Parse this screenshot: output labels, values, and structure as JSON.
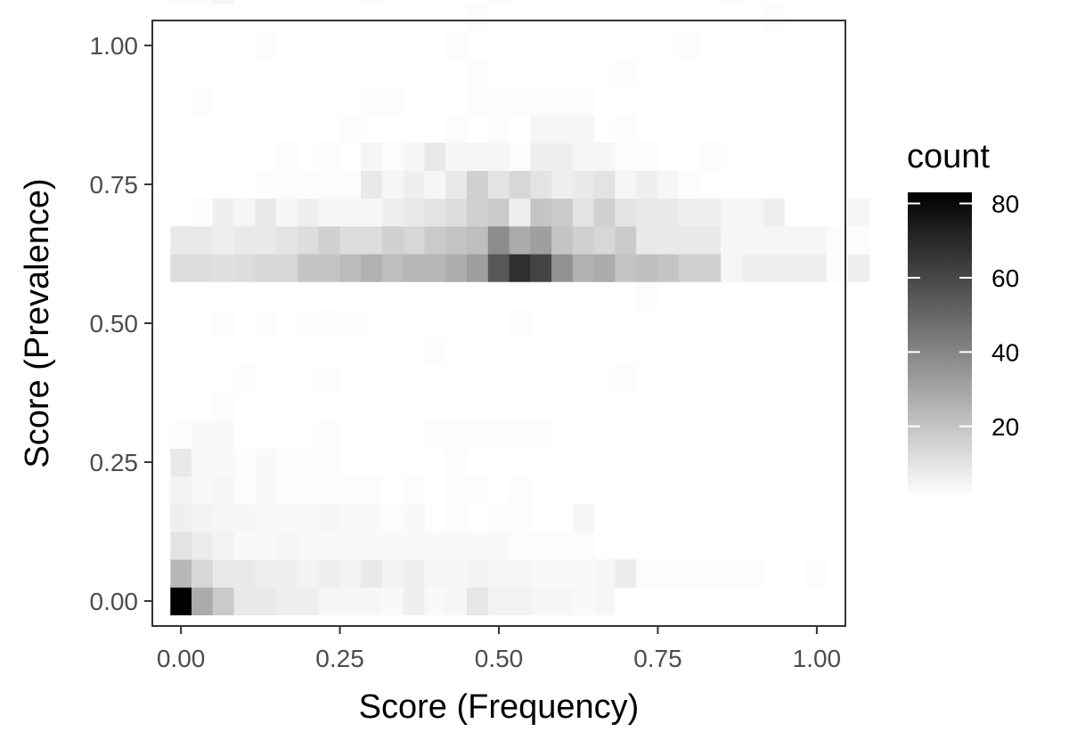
{
  "chart_data": {
    "type": "heatmap",
    "xlabel": "Score (Frequency)",
    "ylabel": "Score (Prevalence)",
    "xlim": [
      -0.045,
      1.045
    ],
    "ylim": [
      -0.045,
      1.045
    ],
    "x_ticks": [
      0,
      0.25,
      0.5,
      0.75,
      1
    ],
    "x_tick_labels": [
      "0.00",
      "0.25",
      "0.50",
      "0.75",
      "1.00"
    ],
    "y_ticks": [
      0,
      0.25,
      0.5,
      0.75,
      1
    ],
    "y_tick_labels": [
      "0.00",
      "0.25",
      "0.50",
      "0.75",
      "1.00"
    ],
    "bin_width": 0.0333,
    "bin_height": 0.05,
    "legend": {
      "title": "count",
      "range": [
        1,
        83
      ],
      "ticks": [
        20,
        40,
        60,
        80
      ],
      "tick_labels": [
        "20",
        "40",
        "60",
        "80"
      ],
      "color_low": "#ffffff",
      "color_high": "#000000",
      "placement": "right"
    },
    "bins": [
      [
        0,
        0,
        83
      ],
      [
        1,
        0,
        28
      ],
      [
        2,
        0,
        18
      ],
      [
        3,
        0,
        8
      ],
      [
        4,
        0,
        8
      ],
      [
        5,
        0,
        6
      ],
      [
        6,
        0,
        6
      ],
      [
        7,
        0,
        4
      ],
      [
        8,
        0,
        4
      ],
      [
        9,
        0,
        4
      ],
      [
        10,
        0,
        3
      ],
      [
        11,
        0,
        6
      ],
      [
        12,
        0,
        3
      ],
      [
        13,
        0,
        4
      ],
      [
        14,
        0,
        9
      ],
      [
        15,
        0,
        5
      ],
      [
        16,
        0,
        5
      ],
      [
        17,
        0,
        4
      ],
      [
        18,
        0,
        4
      ],
      [
        19,
        0,
        3
      ],
      [
        20,
        0,
        4
      ],
      [
        21,
        0,
        1
      ],
      [
        22,
        0,
        1
      ],
      [
        23,
        0,
        1
      ],
      [
        24,
        0,
        1
      ],
      [
        0,
        1,
        24
      ],
      [
        1,
        1,
        14
      ],
      [
        2,
        1,
        8
      ],
      [
        3,
        1,
        8
      ],
      [
        4,
        1,
        6
      ],
      [
        5,
        1,
        6
      ],
      [
        6,
        1,
        5
      ],
      [
        7,
        1,
        6
      ],
      [
        8,
        1,
        5
      ],
      [
        9,
        1,
        8
      ],
      [
        10,
        1,
        5
      ],
      [
        11,
        1,
        6
      ],
      [
        12,
        1,
        4
      ],
      [
        13,
        1,
        4
      ],
      [
        14,
        1,
        5
      ],
      [
        15,
        1,
        4
      ],
      [
        16,
        1,
        4
      ],
      [
        17,
        1,
        3
      ],
      [
        18,
        1,
        3
      ],
      [
        19,
        1,
        3
      ],
      [
        20,
        1,
        4
      ],
      [
        21,
        1,
        7
      ],
      [
        22,
        1,
        2
      ],
      [
        23,
        1,
        2
      ],
      [
        24,
        1,
        2
      ],
      [
        25,
        1,
        2
      ],
      [
        26,
        1,
        2
      ],
      [
        27,
        1,
        2
      ],
      [
        28,
        1,
        1
      ],
      [
        29,
        1,
        1
      ],
      [
        30,
        1,
        2
      ],
      [
        0,
        2,
        10
      ],
      [
        1,
        2,
        7
      ],
      [
        2,
        2,
        5
      ],
      [
        3,
        2,
        3
      ],
      [
        4,
        2,
        3
      ],
      [
        5,
        2,
        4
      ],
      [
        6,
        2,
        3
      ],
      [
        7,
        2,
        3
      ],
      [
        8,
        2,
        3
      ],
      [
        9,
        2,
        3
      ],
      [
        10,
        2,
        3
      ],
      [
        11,
        2,
        3
      ],
      [
        12,
        2,
        3
      ],
      [
        13,
        2,
        3
      ],
      [
        14,
        2,
        3
      ],
      [
        15,
        2,
        3
      ],
      [
        16,
        2,
        2
      ],
      [
        17,
        2,
        2
      ],
      [
        18,
        2,
        2
      ],
      [
        19,
        2,
        2
      ],
      [
        0,
        3,
        6
      ],
      [
        1,
        3,
        5
      ],
      [
        2,
        3,
        4
      ],
      [
        3,
        3,
        4
      ],
      [
        4,
        3,
        3
      ],
      [
        5,
        3,
        3
      ],
      [
        6,
        3,
        3
      ],
      [
        7,
        3,
        4
      ],
      [
        8,
        3,
        3
      ],
      [
        9,
        3,
        3
      ],
      [
        10,
        3,
        2
      ],
      [
        11,
        3,
        3
      ],
      [
        13,
        3,
        2
      ],
      [
        15,
        3,
        2
      ],
      [
        16,
        3,
        2
      ],
      [
        19,
        3,
        4
      ],
      [
        0,
        4,
        5
      ],
      [
        1,
        4,
        3
      ],
      [
        2,
        4,
        4
      ],
      [
        3,
        4,
        2
      ],
      [
        4,
        4,
        3
      ],
      [
        5,
        4,
        2
      ],
      [
        6,
        4,
        2
      ],
      [
        7,
        4,
        2
      ],
      [
        8,
        4,
        2
      ],
      [
        9,
        4,
        2
      ],
      [
        11,
        4,
        2
      ],
      [
        13,
        4,
        2
      ],
      [
        14,
        4,
        2
      ],
      [
        16,
        4,
        2
      ],
      [
        0,
        5,
        8
      ],
      [
        1,
        5,
        3
      ],
      [
        2,
        5,
        3
      ],
      [
        3,
        5,
        2
      ],
      [
        4,
        5,
        3
      ],
      [
        5,
        5,
        2
      ],
      [
        6,
        5,
        2
      ],
      [
        7,
        5,
        2
      ],
      [
        9,
        5,
        1
      ],
      [
        11,
        5,
        1
      ],
      [
        13,
        5,
        2
      ],
      [
        14,
        5,
        1
      ],
      [
        16,
        5,
        1
      ],
      [
        18,
        5,
        1
      ],
      [
        0,
        6,
        2
      ],
      [
        1,
        6,
        3
      ],
      [
        2,
        6,
        3
      ],
      [
        3,
        6,
        1
      ],
      [
        7,
        6,
        2
      ],
      [
        9,
        6,
        1
      ],
      [
        12,
        6,
        2
      ],
      [
        13,
        6,
        2
      ],
      [
        14,
        6,
        2
      ],
      [
        15,
        6,
        2
      ],
      [
        16,
        6,
        2
      ],
      [
        17,
        6,
        2
      ],
      [
        2,
        7,
        2
      ],
      [
        0,
        7,
        1
      ],
      [
        3,
        7,
        1
      ],
      [
        4,
        7,
        1
      ],
      [
        6,
        7,
        1
      ],
      [
        16,
        7,
        1
      ],
      [
        3,
        8,
        2
      ],
      [
        5,
        8,
        1
      ],
      [
        7,
        8,
        2
      ],
      [
        15,
        8,
        1
      ],
      [
        21,
        8,
        2
      ],
      [
        7,
        9,
        1
      ],
      [
        12,
        9,
        2
      ],
      [
        19,
        9,
        1
      ],
      [
        2,
        10,
        2
      ],
      [
        3,
        10,
        1
      ],
      [
        4,
        10,
        2
      ],
      [
        5,
        10,
        1
      ],
      [
        6,
        10,
        2
      ],
      [
        7,
        10,
        2
      ],
      [
        8,
        10,
        2
      ],
      [
        11,
        10,
        1
      ],
      [
        13,
        10,
        1
      ],
      [
        16,
        10,
        2
      ],
      [
        7,
        11,
        1
      ],
      [
        12,
        11,
        1
      ],
      [
        16,
        11,
        1
      ],
      [
        22,
        11,
        2
      ],
      [
        0,
        12,
        12
      ],
      [
        1,
        12,
        12
      ],
      [
        2,
        12,
        11
      ],
      [
        3,
        12,
        12
      ],
      [
        4,
        12,
        14
      ],
      [
        5,
        12,
        14
      ],
      [
        6,
        12,
        20
      ],
      [
        7,
        12,
        20
      ],
      [
        8,
        12,
        23
      ],
      [
        9,
        12,
        26
      ],
      [
        10,
        12,
        22
      ],
      [
        11,
        12,
        24
      ],
      [
        12,
        12,
        24
      ],
      [
        13,
        12,
        27
      ],
      [
        14,
        12,
        32
      ],
      [
        15,
        12,
        55
      ],
      [
        16,
        12,
        68
      ],
      [
        17,
        12,
        61
      ],
      [
        18,
        12,
        36
      ],
      [
        19,
        12,
        26
      ],
      [
        20,
        12,
        28
      ],
      [
        21,
        12,
        20
      ],
      [
        22,
        12,
        22
      ],
      [
        23,
        12,
        20
      ],
      [
        24,
        12,
        16
      ],
      [
        25,
        12,
        16
      ],
      [
        26,
        12,
        4
      ],
      [
        27,
        12,
        6
      ],
      [
        28,
        12,
        6
      ],
      [
        29,
        12,
        6
      ],
      [
        30,
        12,
        6
      ],
      [
        31,
        12,
        2
      ],
      [
        32,
        12,
        6
      ],
      [
        0,
        13,
        8
      ],
      [
        1,
        13,
        8
      ],
      [
        2,
        13,
        6
      ],
      [
        3,
        13,
        8
      ],
      [
        4,
        13,
        8
      ],
      [
        5,
        13,
        10
      ],
      [
        6,
        13,
        12
      ],
      [
        7,
        13,
        16
      ],
      [
        8,
        13,
        12
      ],
      [
        9,
        13,
        12
      ],
      [
        10,
        13,
        16
      ],
      [
        11,
        13,
        14
      ],
      [
        12,
        13,
        18
      ],
      [
        13,
        13,
        20
      ],
      [
        14,
        13,
        22
      ],
      [
        15,
        13,
        38
      ],
      [
        16,
        13,
        28
      ],
      [
        17,
        13,
        32
      ],
      [
        18,
        13,
        20
      ],
      [
        19,
        13,
        16
      ],
      [
        20,
        13,
        14
      ],
      [
        21,
        13,
        18
      ],
      [
        22,
        13,
        8
      ],
      [
        23,
        13,
        8
      ],
      [
        24,
        13,
        8
      ],
      [
        25,
        13,
        8
      ],
      [
        26,
        13,
        4
      ],
      [
        27,
        13,
        4
      ],
      [
        28,
        13,
        4
      ],
      [
        29,
        13,
        4
      ],
      [
        30,
        13,
        4
      ],
      [
        31,
        13,
        2
      ],
      [
        32,
        13,
        2
      ],
      [
        1,
        14,
        2
      ],
      [
        2,
        14,
        6
      ],
      [
        3,
        14,
        4
      ],
      [
        4,
        14,
        8
      ],
      [
        5,
        14,
        4
      ],
      [
        6,
        14,
        6
      ],
      [
        7,
        14,
        4
      ],
      [
        8,
        14,
        4
      ],
      [
        9,
        14,
        4
      ],
      [
        10,
        14,
        6
      ],
      [
        11,
        14,
        8
      ],
      [
        12,
        14,
        10
      ],
      [
        13,
        14,
        12
      ],
      [
        14,
        14,
        16
      ],
      [
        15,
        14,
        18
      ],
      [
        16,
        14,
        6
      ],
      [
        17,
        14,
        20
      ],
      [
        18,
        14,
        18
      ],
      [
        19,
        14,
        10
      ],
      [
        20,
        14,
        16
      ],
      [
        21,
        14,
        10
      ],
      [
        22,
        14,
        8
      ],
      [
        23,
        14,
        8
      ],
      [
        24,
        14,
        6
      ],
      [
        25,
        14,
        6
      ],
      [
        26,
        14,
        4
      ],
      [
        27,
        14,
        4
      ],
      [
        28,
        14,
        6
      ],
      [
        32,
        14,
        4
      ],
      [
        4,
        15,
        2
      ],
      [
        5,
        15,
        2
      ],
      [
        6,
        15,
        2
      ],
      [
        7,
        15,
        2
      ],
      [
        8,
        15,
        2
      ],
      [
        9,
        15,
        8
      ],
      [
        10,
        15,
        4
      ],
      [
        11,
        15,
        6
      ],
      [
        12,
        15,
        4
      ],
      [
        13,
        15,
        8
      ],
      [
        14,
        15,
        16
      ],
      [
        15,
        15,
        10
      ],
      [
        16,
        15,
        14
      ],
      [
        17,
        15,
        10
      ],
      [
        18,
        15,
        6
      ],
      [
        19,
        15,
        8
      ],
      [
        20,
        15,
        10
      ],
      [
        21,
        15,
        4
      ],
      [
        22,
        15,
        6
      ],
      [
        23,
        15,
        4
      ],
      [
        24,
        15,
        2
      ],
      [
        5,
        16,
        2
      ],
      [
        7,
        16,
        2
      ],
      [
        9,
        16,
        4
      ],
      [
        10,
        16,
        2
      ],
      [
        11,
        16,
        4
      ],
      [
        12,
        16,
        8
      ],
      [
        13,
        16,
        4
      ],
      [
        14,
        16,
        4
      ],
      [
        15,
        16,
        4
      ],
      [
        16,
        16,
        2
      ],
      [
        17,
        16,
        6
      ],
      [
        18,
        16,
        6
      ],
      [
        19,
        16,
        4
      ],
      [
        20,
        16,
        4
      ],
      [
        21,
        16,
        2
      ],
      [
        22,
        16,
        2
      ],
      [
        25,
        16,
        2
      ],
      [
        2,
        17,
        1
      ],
      [
        8,
        17,
        2
      ],
      [
        11,
        17,
        1
      ],
      [
        13,
        17,
        2
      ],
      [
        15,
        17,
        2
      ],
      [
        16,
        17,
        1
      ],
      [
        17,
        17,
        4
      ],
      [
        18,
        17,
        4
      ],
      [
        19,
        17,
        4
      ],
      [
        21,
        17,
        2
      ],
      [
        1,
        18,
        2
      ],
      [
        3,
        18,
        1
      ],
      [
        5,
        18,
        1
      ],
      [
        9,
        18,
        2
      ],
      [
        10,
        18,
        2
      ],
      [
        12,
        18,
        1
      ],
      [
        14,
        18,
        2
      ],
      [
        15,
        18,
        2
      ],
      [
        16,
        18,
        2
      ],
      [
        17,
        18,
        2
      ],
      [
        18,
        18,
        2
      ],
      [
        19,
        18,
        2
      ],
      [
        3,
        19,
        1
      ],
      [
        5,
        19,
        1
      ],
      [
        6,
        19,
        1
      ],
      [
        7,
        19,
        1
      ],
      [
        11,
        19,
        1
      ],
      [
        14,
        19,
        2
      ],
      [
        17,
        19,
        1
      ],
      [
        21,
        19,
        2
      ],
      [
        4,
        20,
        2
      ],
      [
        13,
        20,
        2
      ],
      [
        24,
        20,
        2
      ],
      [
        12,
        21,
        1
      ],
      [
        14,
        21,
        2
      ],
      [
        19,
        21,
        1
      ],
      [
        21,
        21,
        1
      ],
      [
        28,
        21,
        2
      ],
      [
        0,
        22,
        2
      ],
      [
        1,
        22,
        2
      ],
      [
        2,
        22,
        4
      ],
      [
        9,
        22,
        2
      ],
      [
        12,
        22,
        1
      ],
      [
        15,
        22,
        2
      ],
      [
        26,
        22,
        2
      ],
      [
        17,
        23,
        3
      ],
      [
        0,
        24,
        6
      ],
      [
        1,
        24,
        4
      ],
      [
        2,
        24,
        3
      ],
      [
        6,
        24,
        2
      ],
      [
        9,
        24,
        2
      ],
      [
        10,
        24,
        3
      ],
      [
        13,
        24,
        2
      ]
    ]
  }
}
